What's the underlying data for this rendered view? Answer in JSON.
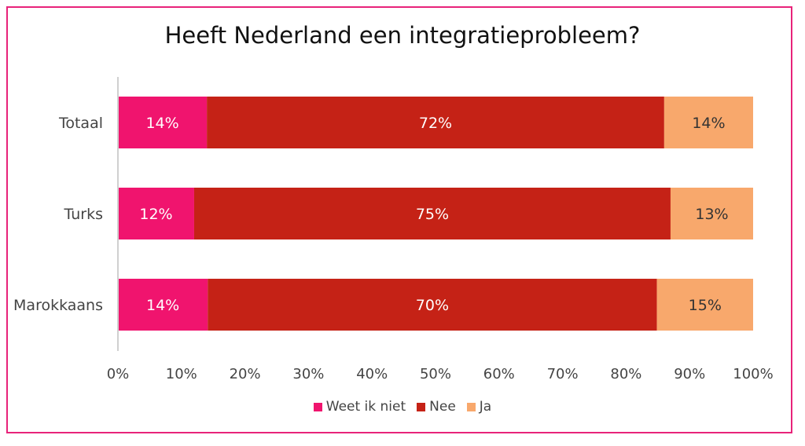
{
  "chart_data": {
    "type": "bar",
    "orientation": "horizontal",
    "stacked": true,
    "title": "Heeft Nederland een integratieprobleem?",
    "categories": [
      "Totaal",
      "Turks",
      "Marokkaans"
    ],
    "series": [
      {
        "name": "Weet ik niet",
        "values": [
          14,
          12,
          14
        ],
        "labels": [
          "14%",
          "12%",
          "14%"
        ],
        "color": "#f0146e"
      },
      {
        "name": "Nee",
        "values": [
          72,
          75,
          70
        ],
        "labels": [
          "72%",
          "75%",
          "70%"
        ],
        "color": "#c52216"
      },
      {
        "name": "Ja",
        "values": [
          14,
          13,
          15
        ],
        "labels": [
          "14%",
          "13%",
          "15%"
        ],
        "color": "#f8a86c"
      }
    ],
    "xlim": [
      0,
      100
    ],
    "xticks": [
      "0%",
      "10%",
      "20%",
      "30%",
      "40%",
      "50%",
      "60%",
      "70%",
      "80%",
      "90%",
      "100%"
    ],
    "grid": false,
    "legend_position": "bottom",
    "frame_color": "#e8237a"
  }
}
